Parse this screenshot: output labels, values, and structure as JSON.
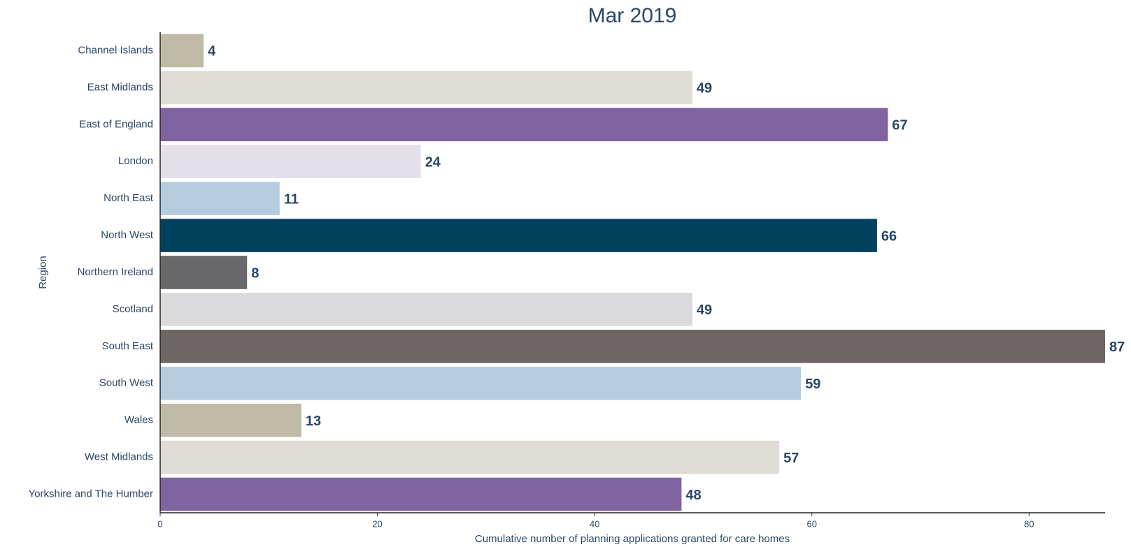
{
  "chart_data": {
    "type": "bar",
    "orientation": "horizontal",
    "title": "Mar 2019",
    "y_label": "Region",
    "x_label": "Cumulative number of planning applications granted for care homes",
    "categories": [
      "Channel Islands",
      "East Midlands",
      "East of England",
      "London",
      "North East",
      "North West",
      "Northern Ireland",
      "Scotland",
      "South East",
      "South West",
      "Wales",
      "West Midlands",
      "Yorkshire and The Humber"
    ],
    "values": [
      4,
      49,
      67,
      24,
      11,
      66,
      8,
      49,
      87,
      59,
      13,
      57,
      48
    ],
    "colors": [
      "#bfb9a6",
      "#dfdcd5",
      "#8063a0",
      "#e5dfea",
      "#b5cce0",
      "#00425e",
      "#68676a",
      "#dadadc",
      "#6e6565",
      "#b5cce0",
      "#bfb9a6",
      "#dfdcd5",
      "#8063a0"
    ],
    "xlim": [
      0,
      87
    ],
    "xticks": [
      0,
      20,
      40,
      60,
      80
    ],
    "grid": false
  }
}
